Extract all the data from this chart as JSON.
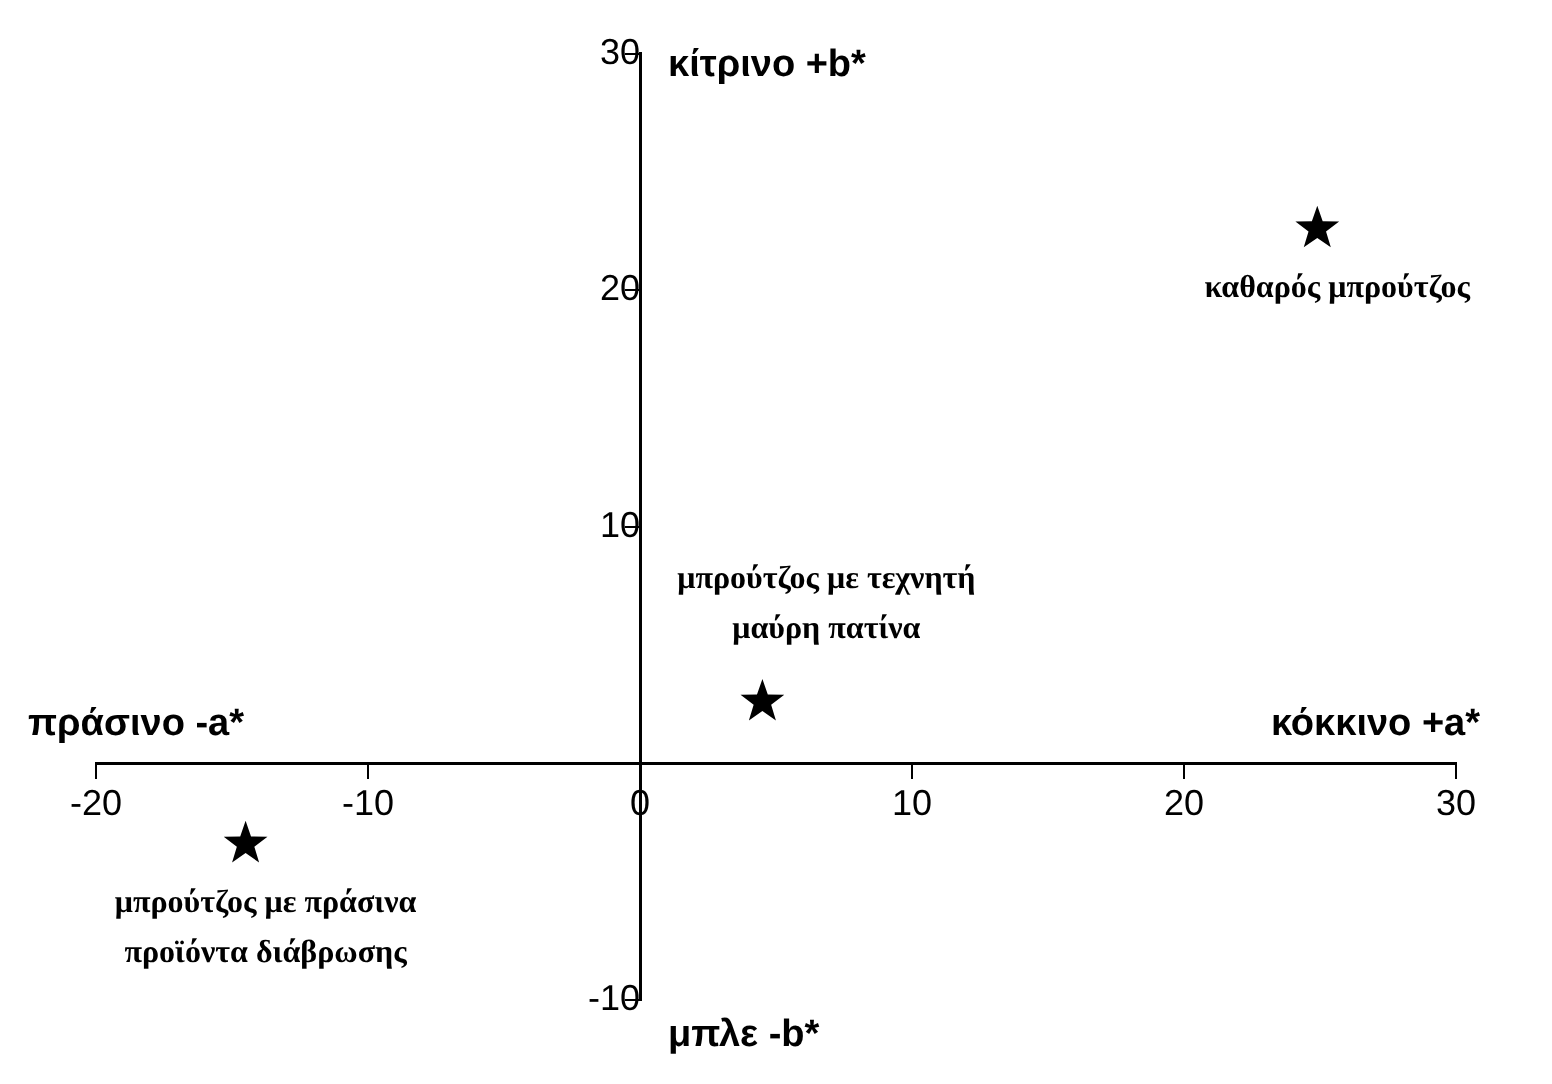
{
  "chart_data": {
    "type": "scatter",
    "x": [
      24.9,
      4.5,
      -14.5
    ],
    "values": [
      22.6,
      2.6,
      -3.4
    ],
    "color": "#000000",
    "marker": "star",
    "xlim": [
      -20,
      30
    ],
    "xticks": [
      -20,
      -10,
      0,
      10,
      20,
      30
    ],
    "ylim": [
      -10,
      30
    ],
    "yticks": [
      -10,
      10,
      20,
      30
    ],
    "grid": false,
    "legend": false,
    "annotations": [
      "κίτρινο +b*",
      "κόκκινο +a*",
      "μπλε -b*",
      "πράσινο -a*",
      {
        "text": "καθαρός μπρούτζος",
        "x": 24.9,
        "y": 22.6
      },
      {
        "text": "μπρούτζος με τεχνητή\nμαύρη πατίνα",
        "x": 4.5,
        "y": 2.6
      },
      {
        "text": "μπρούτζος με πράσινα\nπροϊόντα διάβρωσης",
        "x": -14.5,
        "y": -3.4
      }
    ]
  }
}
